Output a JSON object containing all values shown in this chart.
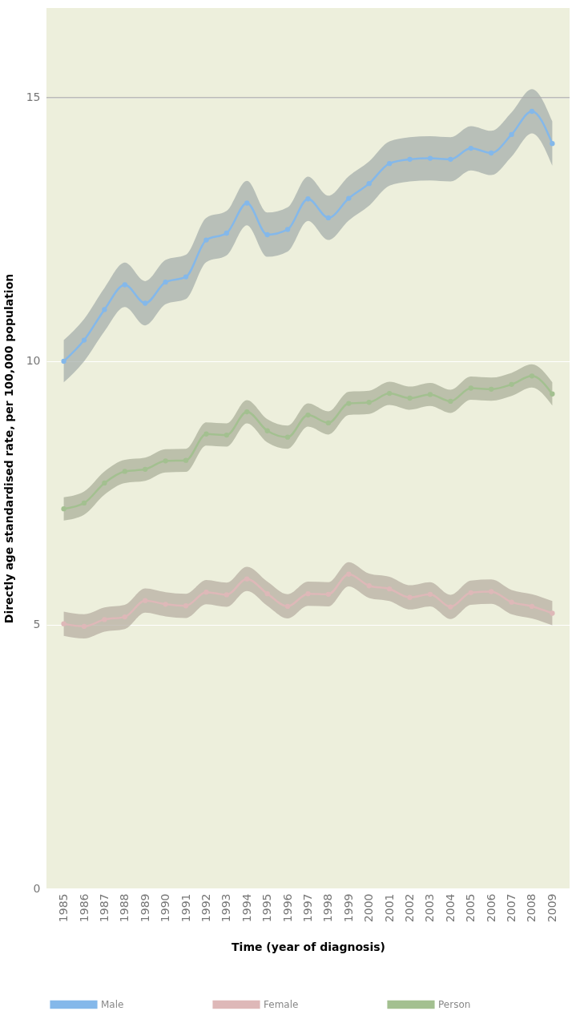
{
  "chart_data": {
    "type": "line",
    "xlabel": "Time (year of diagnosis)",
    "ylabel": "Directly age standardised rate, per 100,000 population",
    "categories": [
      "1985",
      "1986",
      "1987",
      "1988",
      "1989",
      "1990",
      "1991",
      "1992",
      "1993",
      "1994",
      "1995",
      "1996",
      "1997",
      "1998",
      "1999",
      "2000",
      "2001",
      "2002",
      "2003",
      "2004",
      "2005",
      "2006",
      "2007",
      "2008",
      "2009"
    ],
    "series": [
      {
        "name": "Male",
        "color": "#84b8ea",
        "values": [
          10.0,
          10.4,
          10.98,
          11.45,
          11.1,
          11.5,
          11.6,
          12.3,
          12.43,
          13.0,
          12.4,
          12.5,
          13.08,
          12.72,
          13.09,
          13.37,
          13.75,
          13.83,
          13.85,
          13.83,
          14.04,
          13.95,
          14.3,
          14.74,
          14.13
        ],
        "lower": [
          9.6,
          10.0,
          10.57,
          11.03,
          10.68,
          11.08,
          11.18,
          11.88,
          12.01,
          12.58,
          11.98,
          12.08,
          12.66,
          12.3,
          12.67,
          12.95,
          13.33,
          13.41,
          13.43,
          13.41,
          13.62,
          13.53,
          13.88,
          14.32,
          13.71
        ],
        "upper": [
          10.4,
          10.8,
          11.39,
          11.87,
          11.52,
          11.92,
          12.02,
          12.72,
          12.85,
          13.42,
          12.82,
          12.92,
          13.5,
          13.14,
          13.51,
          13.79,
          14.17,
          14.25,
          14.27,
          14.25,
          14.46,
          14.37,
          14.72,
          15.16,
          14.55
        ]
      },
      {
        "name": "Female",
        "color": "#deb8b8",
        "values": [
          5.02,
          4.97,
          5.1,
          5.15,
          5.46,
          5.39,
          5.36,
          5.62,
          5.57,
          5.87,
          5.59,
          5.35,
          5.59,
          5.58,
          5.96,
          5.74,
          5.68,
          5.52,
          5.58,
          5.34,
          5.61,
          5.63,
          5.43,
          5.35,
          5.22
        ],
        "lower": [
          4.79,
          4.74,
          4.87,
          4.92,
          5.23,
          5.16,
          5.13,
          5.39,
          5.34,
          5.64,
          5.36,
          5.12,
          5.36,
          5.35,
          5.73,
          5.51,
          5.45,
          5.29,
          5.35,
          5.11,
          5.38,
          5.4,
          5.2,
          5.12,
          4.99
        ],
        "upper": [
          5.25,
          5.2,
          5.33,
          5.38,
          5.69,
          5.62,
          5.59,
          5.85,
          5.8,
          6.1,
          5.82,
          5.58,
          5.82,
          5.81,
          6.19,
          5.97,
          5.91,
          5.75,
          5.81,
          5.57,
          5.84,
          5.86,
          5.66,
          5.58,
          5.45
        ]
      },
      {
        "name": "Person",
        "color": "#a3c090",
        "values": [
          7.2,
          7.31,
          7.69,
          7.91,
          7.95,
          8.11,
          8.12,
          8.62,
          8.6,
          9.04,
          8.68,
          8.56,
          8.98,
          8.83,
          9.2,
          9.22,
          9.39,
          9.3,
          9.37,
          9.24,
          9.49,
          9.47,
          9.56,
          9.72,
          9.38
        ],
        "lower": [
          6.98,
          7.09,
          7.47,
          7.69,
          7.73,
          7.89,
          7.9,
          8.4,
          8.38,
          8.82,
          8.46,
          8.34,
          8.76,
          8.61,
          8.98,
          9.0,
          9.17,
          9.08,
          9.15,
          9.02,
          9.27,
          9.25,
          9.34,
          9.5,
          9.16
        ],
        "upper": [
          7.42,
          7.53,
          7.91,
          8.13,
          8.17,
          8.33,
          8.34,
          8.84,
          8.82,
          9.26,
          8.9,
          8.78,
          9.2,
          9.05,
          9.42,
          9.44,
          9.61,
          9.52,
          9.59,
          9.46,
          9.71,
          9.69,
          9.78,
          9.94,
          9.6
        ]
      }
    ],
    "ylim": [
      0,
      16.7
    ],
    "yticks": [
      0,
      5,
      10,
      15
    ],
    "grid": "y",
    "legend": "bottom",
    "marker": "circle",
    "line_style": "solid",
    "ref_lines": [
      {
        "axis": "y",
        "value": 15,
        "color": "#aaaaaa"
      }
    ]
  }
}
